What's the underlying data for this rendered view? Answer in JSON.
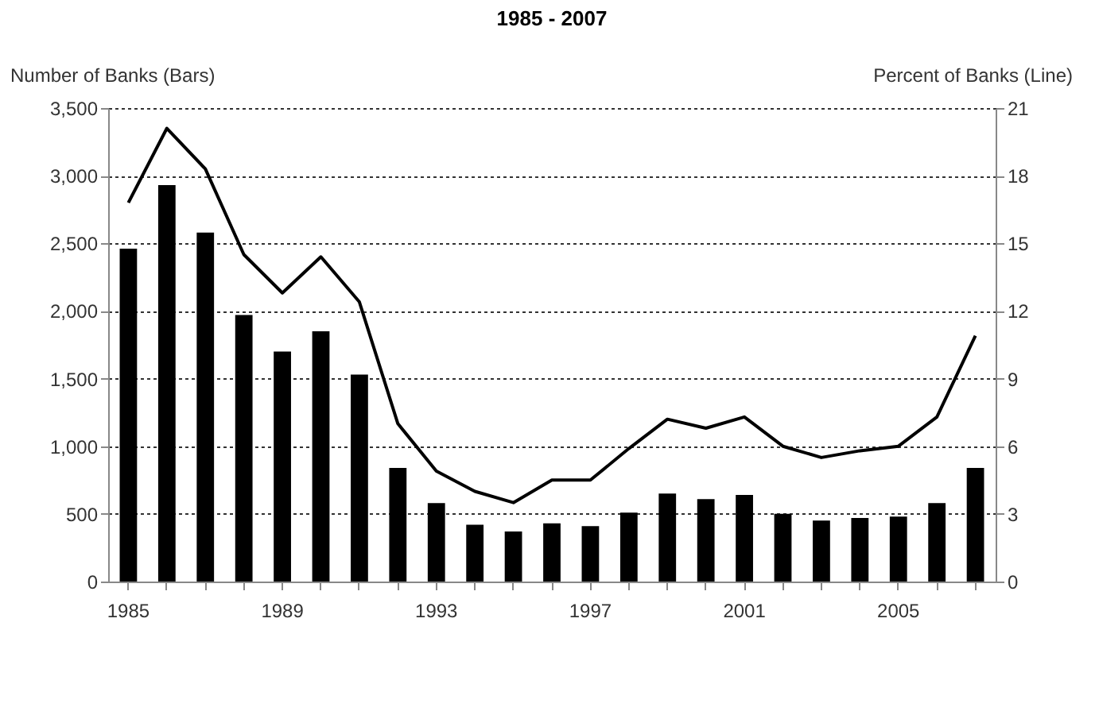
{
  "chart_data": {
    "type": "bar",
    "title": "1985 - 2007",
    "ylabel": "Number of Banks (Bars)",
    "y2label": "Percent of Banks (Line)",
    "categories": [
      "1985",
      null,
      null,
      null,
      "1989",
      null,
      null,
      null,
      "1993",
      null,
      null,
      null,
      "1997",
      null,
      null,
      null,
      "2001",
      null,
      null,
      null,
      "2005",
      null,
      null
    ],
    "series": [
      {
        "color": "#000000",
        "values": [
          2460,
          2930,
          2580,
          1970,
          1700,
          1850,
          1530,
          840,
          580,
          420,
          370,
          430,
          410,
          510,
          650,
          610,
          640,
          500,
          450,
          470,
          480,
          580,
          840
        ]
      },
      {
        "type": "line",
        "axis": "y2",
        "color": "#000000",
        "values": [
          16.8,
          20.1,
          18.3,
          14.5,
          12.8,
          14.4,
          12.4,
          7.0,
          4.9,
          4.0,
          3.5,
          4.5,
          4.5,
          5.9,
          7.2,
          6.8,
          7.3,
          6.0,
          5.5,
          5.8,
          6.0,
          7.3,
          10.9
        ]
      }
    ],
    "ylim": [
      0,
      3500
    ],
    "yticks": [
      0,
      {
        "value": 500,
        "label": "500"
      },
      {
        "value": 1000,
        "label": "1,000"
      },
      {
        "value": 1500,
        "label": "1,500"
      },
      {
        "value": 2000,
        "label": "2,000"
      },
      {
        "value": 2500,
        "label": "2,500"
      },
      {
        "value": 3000,
        "label": "3,000"
      },
      {
        "value": 3500,
        "label": "3,500"
      }
    ],
    "y2lim": [
      0,
      21
    ],
    "y2ticks": [
      0,
      3,
      6,
      9,
      12,
      15,
      18,
      21
    ],
    "grid": "y"
  }
}
